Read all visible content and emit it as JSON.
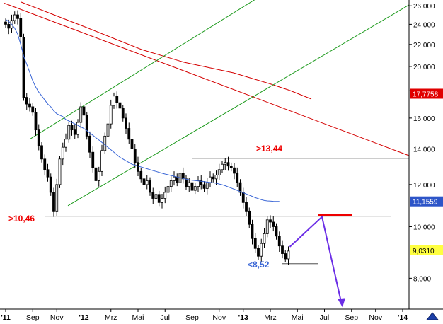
{
  "chart_data": {
    "type": "candlestick",
    "ylim": [
      7000,
      26500
    ],
    "log_scale": true,
    "y_ticks": [
      {
        "value": 8000,
        "label": "8,000"
      },
      {
        "value": 10000,
        "label": "10,000"
      },
      {
        "value": 12000,
        "label": "12,000"
      },
      {
        "value": 14000,
        "label": "14,000"
      },
      {
        "value": 16000,
        "label": "16,000"
      },
      {
        "value": 18000,
        "label": "18,000"
      },
      {
        "value": 20000,
        "label": "20,000"
      },
      {
        "value": 22000,
        "label": "22,000"
      },
      {
        "value": 24000,
        "label": "24,000"
      },
      {
        "value": 26000,
        "label": "26,000"
      }
    ],
    "x_ticks": [
      {
        "label": "'11",
        "year": true,
        "index": 0
      },
      {
        "label": "Sep",
        "year": false,
        "index": 9
      },
      {
        "label": "Nov",
        "year": false,
        "index": 17
      },
      {
        "label": "'12",
        "year": true,
        "index": 26
      },
      {
        "label": "Mrz",
        "year": false,
        "index": 35
      },
      {
        "label": "Mai",
        "year": false,
        "index": 44
      },
      {
        "label": "Jul",
        "year": false,
        "index": 53
      },
      {
        "label": "Sep",
        "year": false,
        "index": 62
      },
      {
        "label": "Nov",
        "year": false,
        "index": 71
      },
      {
        "label": "'13",
        "year": true,
        "index": 79
      },
      {
        "label": "Mrz",
        "year": false,
        "index": 88
      },
      {
        "label": "Mai",
        "year": false,
        "index": 97
      },
      {
        "label": "Jul",
        "year": false,
        "index": 106
      },
      {
        "label": "Sep",
        "year": false,
        "index": 115
      },
      {
        "label": "Nov",
        "year": false,
        "index": 123
      },
      {
        "label": "'14",
        "year": true,
        "index": 132
      }
    ],
    "grid": false,
    "candles": [
      24000,
      23600,
      24400,
      25000,
      24600,
      22700,
      17500,
      17000,
      16800,
      16400,
      15200,
      14200,
      13400,
      12800,
      12400,
      11600,
      10700,
      12000,
      13400,
      14100,
      14600,
      15500,
      15200,
      14900,
      15700,
      16800,
      16200,
      14800,
      13800,
      12900,
      12200,
      12700,
      13900,
      14800,
      15600,
      16900,
      17600,
      17100,
      16700,
      16000,
      15300,
      14600,
      14000,
      13200,
      12700,
      12300,
      12000,
      12200,
      11600,
      11300,
      11500,
      11100,
      11300,
      11600,
      11900,
      12200,
      12400,
      12100,
      12600,
      12300,
      11900,
      12100,
      11700,
      11900,
      12200,
      12000,
      11800,
      12100,
      12400,
      12300,
      12500,
      12800,
      13100,
      13200,
      13000,
      12900,
      12600,
      12100,
      11600,
      11100,
      10700,
      10100,
      9500,
      9100,
      8800,
      9300,
      9700,
      10300,
      10200,
      10000,
      9600,
      9200,
      8900,
      8700,
      9000
    ],
    "moving_average": {
      "value_label": "11,1559",
      "values": [
        24500,
        24300,
        24000,
        23600,
        23000,
        22000,
        20900,
        20200,
        19500,
        18800,
        18300,
        17900,
        17600,
        17300,
        17000,
        16800,
        16500,
        16300,
        16200,
        16100,
        15900,
        15800,
        15700,
        15600,
        15500,
        15400,
        15300,
        15150,
        15000,
        14850,
        14700,
        14550,
        14400,
        14250,
        14100,
        13950,
        13800,
        13650,
        13500,
        13400,
        13300,
        13200,
        13100,
        13050,
        13000,
        12950,
        12900,
        12850,
        12800,
        12750,
        12700,
        12650,
        12600,
        12560,
        12520,
        12480,
        12440,
        12400,
        12360,
        12320,
        12280,
        12250,
        12230,
        12210,
        12190,
        12170,
        12150,
        12130,
        12110,
        12090,
        12070,
        12030,
        11990,
        11940,
        11880,
        11820,
        11760,
        11700,
        11640,
        11580,
        11520,
        11460,
        11400,
        11340,
        11290,
        11240,
        11200,
        11180,
        11170,
        11160,
        11156,
        11156
      ]
    },
    "resistance_upper": {
      "value": 13440,
      "label": ">13,44",
      "from_index": 62,
      "to_index": 134
    },
    "support_lower": {
      "value": 10460,
      "label": ">10,46",
      "from_index": 13,
      "to_index": 128
    },
    "recent_low": {
      "value": 8520,
      "label": "<8,52",
      "from_index": 92,
      "to_index": 104
    },
    "red_trendline_value_label": "17,7758",
    "last_price_label": "9,0310",
    "projection_level": 10500,
    "projection_target": 7100,
    "colors": {
      "up_candle": "#ffffff",
      "down_candle": "#000000",
      "moving_average": "#3a66d6",
      "red_trend": "#d40000",
      "green_trend": "#1c9a1c",
      "projection_arrow": "#6b2ee6",
      "projection_level": "#ee0000",
      "support_label": "#ee0000",
      "resistance_label": "#ee0000",
      "low_label": "#3a66d6",
      "ma_badge_bg": "#2d55c8",
      "red_badge_bg": "#e00000",
      "last_price_badge_bg": "#ffff40"
    }
  }
}
